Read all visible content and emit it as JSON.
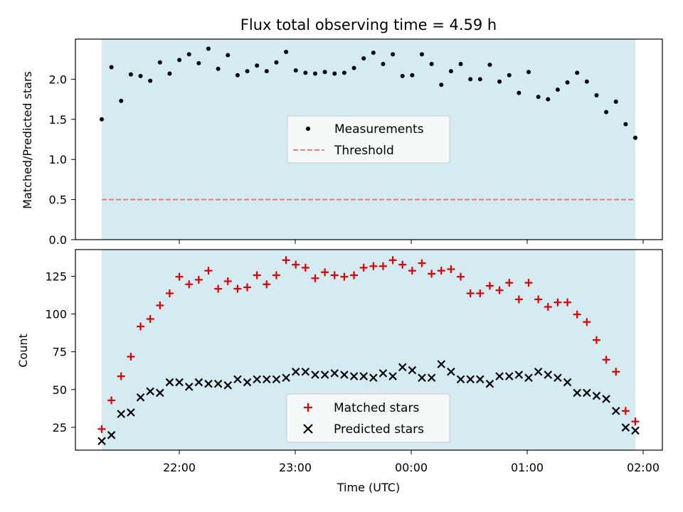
{
  "chart_data": {
    "title": "Flux total observing time = 4.59 h",
    "xlabel": "Time (UTC)",
    "x_ticks": [
      "22:00",
      "23:00",
      "00:00",
      "01:00",
      "02:00"
    ],
    "colors": {
      "span": "#d4ebf1",
      "measurement": "#000000",
      "threshold": "#f07878",
      "matched": "#e00000",
      "predicted": "#000000"
    },
    "panels": [
      {
        "type": "scatter",
        "ylabel": "Matched/Predicted stars",
        "ylim": [
          0.0,
          2.5
        ],
        "y_ticks": [
          "0.0",
          "0.5",
          "1.0",
          "1.5",
          "2.0"
        ],
        "legend": {
          "placement": "center",
          "entries": [
            "Measurements",
            "Threshold"
          ]
        },
        "threshold": 0.5,
        "series": [
          {
            "name": "Measurements",
            "marker": "dot",
            "values": [
              1.5,
              2.15,
              1.73,
              2.06,
              2.04,
              1.98,
              2.21,
              2.07,
              2.24,
              2.31,
              2.2,
              2.38,
              2.13,
              2.3,
              2.05,
              2.1,
              2.17,
              2.1,
              2.21,
              2.34,
              2.11,
              2.08,
              2.07,
              2.09,
              2.07,
              2.08,
              2.14,
              2.26,
              2.33,
              2.19,
              2.31,
              2.04,
              2.05,
              2.31,
              2.19,
              1.93,
              2.1,
              2.19,
              2.0,
              2.0,
              2.18,
              1.97,
              2.05,
              1.83,
              2.09,
              1.78,
              1.75,
              1.87,
              1.96,
              2.08,
              1.97,
              1.8,
              1.59,
              1.72,
              1.44,
              1.27
            ]
          }
        ]
      },
      {
        "type": "scatter",
        "ylabel": "Count",
        "ylim": [
          10,
          143
        ],
        "y_ticks": [
          "25",
          "50",
          "75",
          "100",
          "125"
        ],
        "legend": {
          "placement": "lower center",
          "entries": [
            "Matched stars",
            "Predicted stars"
          ]
        },
        "series": [
          {
            "name": "Matched stars",
            "marker": "plus",
            "values": [
              24,
              43,
              59,
              72,
              92,
              97,
              106,
              114,
              125,
              120,
              123,
              129,
              117,
              122,
              117,
              118,
              126,
              120,
              126,
              136,
              133,
              131,
              124,
              128,
              126,
              125,
              126,
              131,
              132,
              132,
              136,
              133,
              129,
              134,
              127,
              129,
              130,
              125,
              114,
              114,
              119,
              116,
              121,
              110,
              121,
              110,
              105,
              108,
              108,
              100,
              95,
              83,
              70,
              62,
              36,
              29
            ]
          },
          {
            "name": "Predicted stars",
            "marker": "x",
            "values": [
              16,
              20,
              34,
              35,
              45,
              49,
              48,
              55,
              55,
              52,
              55,
              54,
              54,
              53,
              57,
              55,
              57,
              57,
              57,
              58,
              62,
              62,
              60,
              60,
              61,
              60,
              59,
              59,
              58,
              61,
              59,
              65,
              63,
              58,
              58,
              67,
              62,
              57,
              57,
              57,
              54,
              59,
              59,
              60,
              58,
              62,
              60,
              58,
              55,
              48,
              48,
              46,
              44,
              36,
              25,
              23
            ]
          }
        ]
      }
    ]
  }
}
